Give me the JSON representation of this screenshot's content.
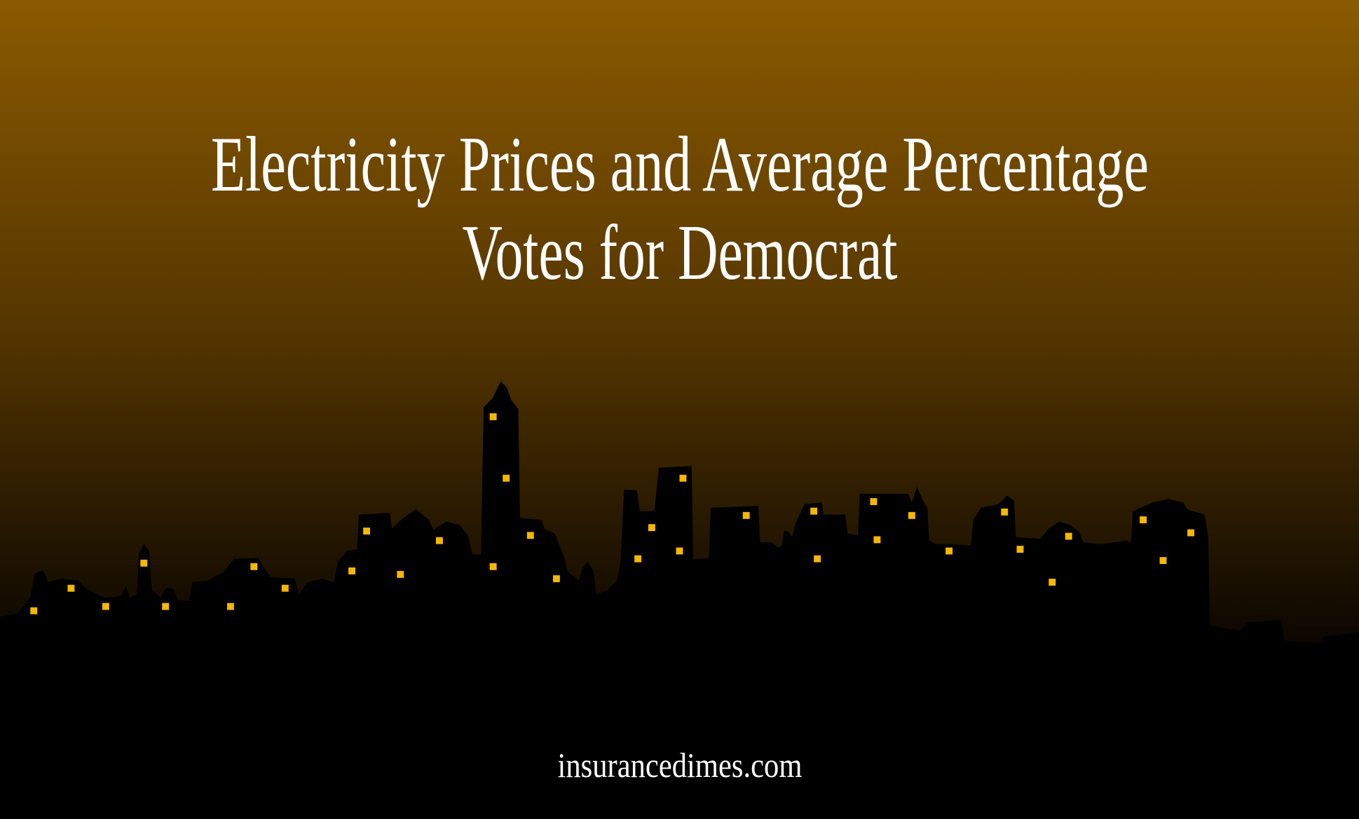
{
  "title": {
    "lines": [
      "Electricity Prices and Average Percentage",
      "Votes for Democrat"
    ]
  },
  "footer": "insurancedimes.com"
}
